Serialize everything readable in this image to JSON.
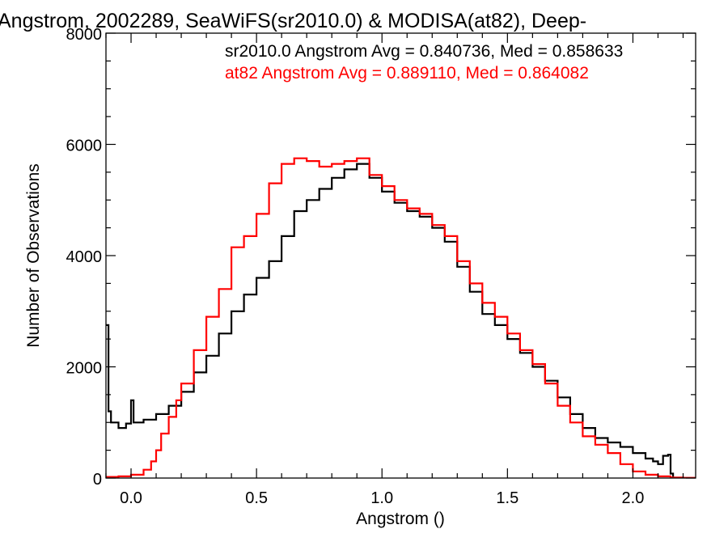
{
  "chart_data": {
    "type": "line",
    "step": true,
    "title": "Angstrom, 2002289, SeaWiFS(sr2010.0) & MODISA(at82), Deep-",
    "xlabel": "Angstrom ()",
    "ylabel": "Number of Observations",
    "xlim": [
      -0.1,
      2.25
    ],
    "ylim": [
      0,
      8000
    ],
    "xticks": [
      0.0,
      0.5,
      1.0,
      1.5,
      2.0
    ],
    "xtick_labels": [
      "0.0",
      "0.5",
      "1.0",
      "1.5",
      "2.0"
    ],
    "yticks": [
      0,
      2000,
      4000,
      6000,
      8000
    ],
    "ytick_labels": [
      "0",
      "2000",
      "4000",
      "6000",
      "8000"
    ],
    "grid": false,
    "annotations": [
      {
        "text": "sr2010.0 Angstrom Avg = 0.840736, Med = 0.858633",
        "color": "#000000"
      },
      {
        "text": "at82 Angstrom Avg = 0.889110, Med = 0.864082",
        "color": "#ff0000"
      }
    ],
    "series": [
      {
        "color": "#000000",
        "x": [
          -0.1,
          -0.09,
          -0.08,
          -0.05,
          -0.02,
          0.0,
          0.01,
          0.05,
          0.1,
          0.15,
          0.2,
          0.25,
          0.3,
          0.35,
          0.4,
          0.45,
          0.5,
          0.55,
          0.6,
          0.65,
          0.7,
          0.75,
          0.8,
          0.85,
          0.9,
          0.95,
          1.0,
          1.05,
          1.1,
          1.15,
          1.2,
          1.25,
          1.3,
          1.35,
          1.4,
          1.45,
          1.5,
          1.55,
          1.6,
          1.65,
          1.7,
          1.75,
          1.8,
          1.85,
          1.9,
          1.95,
          2.0,
          2.05,
          2.08,
          2.1,
          2.12,
          2.14,
          2.15,
          2.16,
          2.25
        ],
        "y": [
          2750,
          1200,
          1000,
          900,
          980,
          1400,
          1000,
          1050,
          1150,
          1300,
          1550,
          1900,
          2200,
          2600,
          3000,
          3300,
          3600,
          3900,
          4350,
          4800,
          5000,
          5200,
          5400,
          5550,
          5650,
          5400,
          5150,
          4950,
          4800,
          4700,
          4500,
          4250,
          3800,
          3350,
          2950,
          2750,
          2500,
          2250,
          2000,
          1750,
          1450,
          1150,
          900,
          720,
          640,
          560,
          450,
          350,
          300,
          250,
          400,
          420,
          80,
          0,
          0
        ]
      },
      {
        "color": "#ff0000",
        "x": [
          -0.1,
          -0.05,
          0.0,
          0.05,
          0.08,
          0.1,
          0.12,
          0.15,
          0.18,
          0.2,
          0.25,
          0.3,
          0.35,
          0.4,
          0.45,
          0.5,
          0.55,
          0.6,
          0.65,
          0.7,
          0.75,
          0.8,
          0.85,
          0.9,
          0.95,
          1.0,
          1.05,
          1.1,
          1.15,
          1.2,
          1.25,
          1.3,
          1.35,
          1.4,
          1.45,
          1.5,
          1.55,
          1.6,
          1.65,
          1.7,
          1.75,
          1.8,
          1.85,
          1.9,
          1.95,
          2.0,
          2.05,
          2.1,
          2.15,
          2.2,
          2.25
        ],
        "y": [
          20,
          30,
          60,
          150,
          300,
          500,
          800,
          1100,
          1400,
          1700,
          2300,
          2900,
          3400,
          4150,
          4350,
          4750,
          5300,
          5650,
          5750,
          5700,
          5600,
          5650,
          5700,
          5750,
          5450,
          5250,
          5000,
          4850,
          4750,
          4550,
          4350,
          3900,
          3500,
          3150,
          2900,
          2600,
          2300,
          2050,
          1700,
          1300,
          1000,
          750,
          600,
          450,
          250,
          120,
          60,
          30,
          10,
          5,
          0
        ]
      }
    ]
  }
}
